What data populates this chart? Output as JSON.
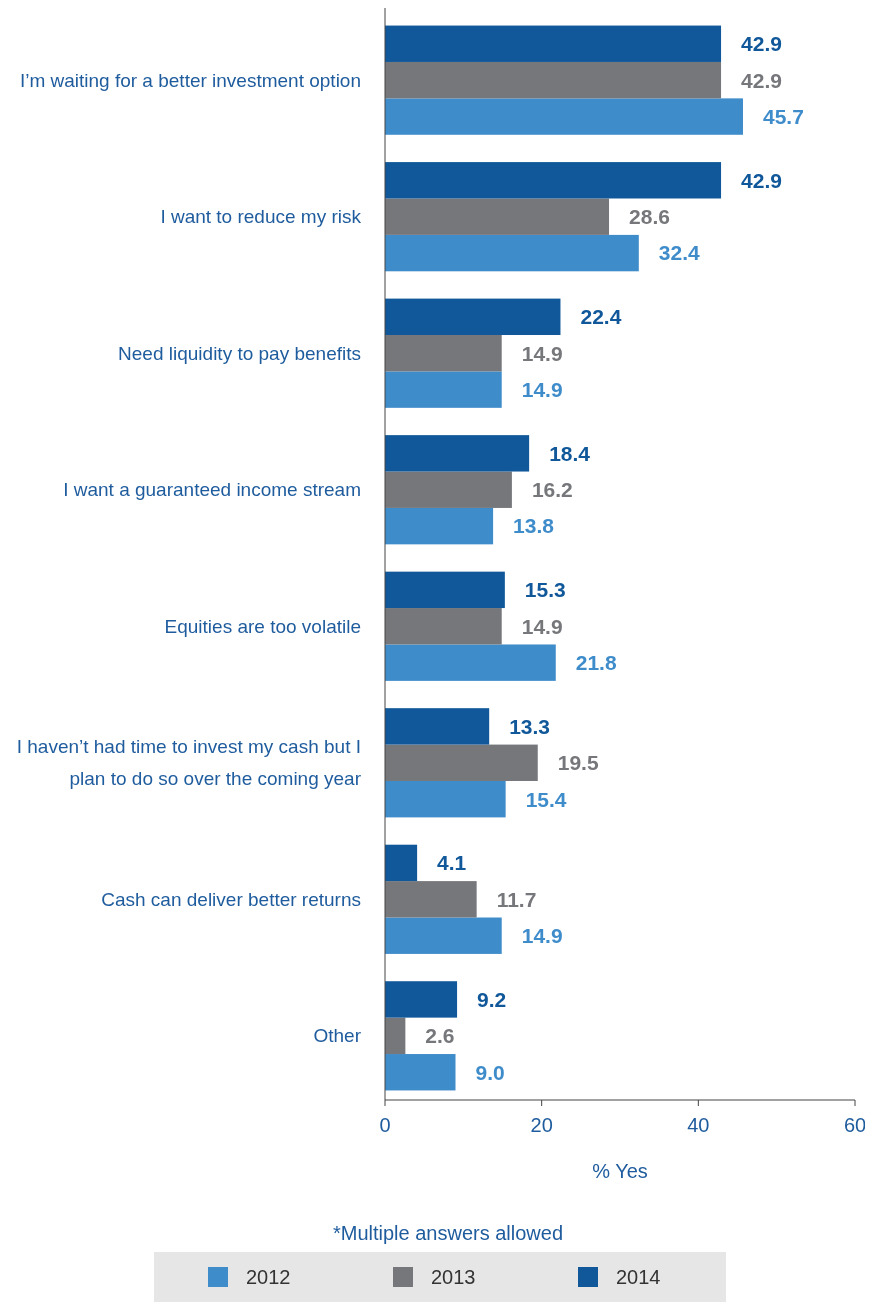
{
  "chart_data": {
    "type": "bar",
    "orientation": "horizontal",
    "categories": [
      "I’m waiting for a better investment option",
      "I want to reduce my risk",
      "Need liquidity to pay benefits",
      "I want a guaranteed income stream",
      "Equities are too volatile",
      "I haven’t had time to invest my cash but I plan to do so over the coming year",
      "Cash can deliver better returns",
      "Other"
    ],
    "series": [
      {
        "name": "2012",
        "color": "#3f8ccb",
        "values": [
          45.7,
          32.4,
          14.9,
          13.8,
          21.8,
          15.4,
          14.9,
          9.0
        ],
        "value_labels": [
          "45.7",
          "32.4",
          "14.9",
          "13.8",
          "21.8",
          "15.4",
          "14.9",
          "9.0"
        ]
      },
      {
        "name": "2013",
        "color": "#76777b",
        "values": [
          42.9,
          28.6,
          14.9,
          16.2,
          14.9,
          19.5,
          11.7,
          2.6
        ],
        "value_labels": [
          "42.9",
          "28.6",
          "14.9",
          "16.2",
          "14.9",
          "19.5",
          "11.7",
          "2.6"
        ]
      },
      {
        "name": "2014",
        "color": "#10589a",
        "values": [
          42.9,
          42.9,
          22.4,
          18.4,
          15.3,
          13.3,
          4.1,
          9.2
        ],
        "value_labels": [
          "42.9",
          "42.9",
          "22.4",
          "18.4",
          "15.3",
          "13.3",
          "4.1",
          "9.2"
        ]
      }
    ],
    "xlim": [
      0,
      60
    ],
    "xticks": [
      0,
      20,
      40,
      60
    ],
    "xlabel": "% Yes",
    "grid": false,
    "legend": "bottom",
    "annotations": [
      "*Multiple answers allowed"
    ]
  }
}
